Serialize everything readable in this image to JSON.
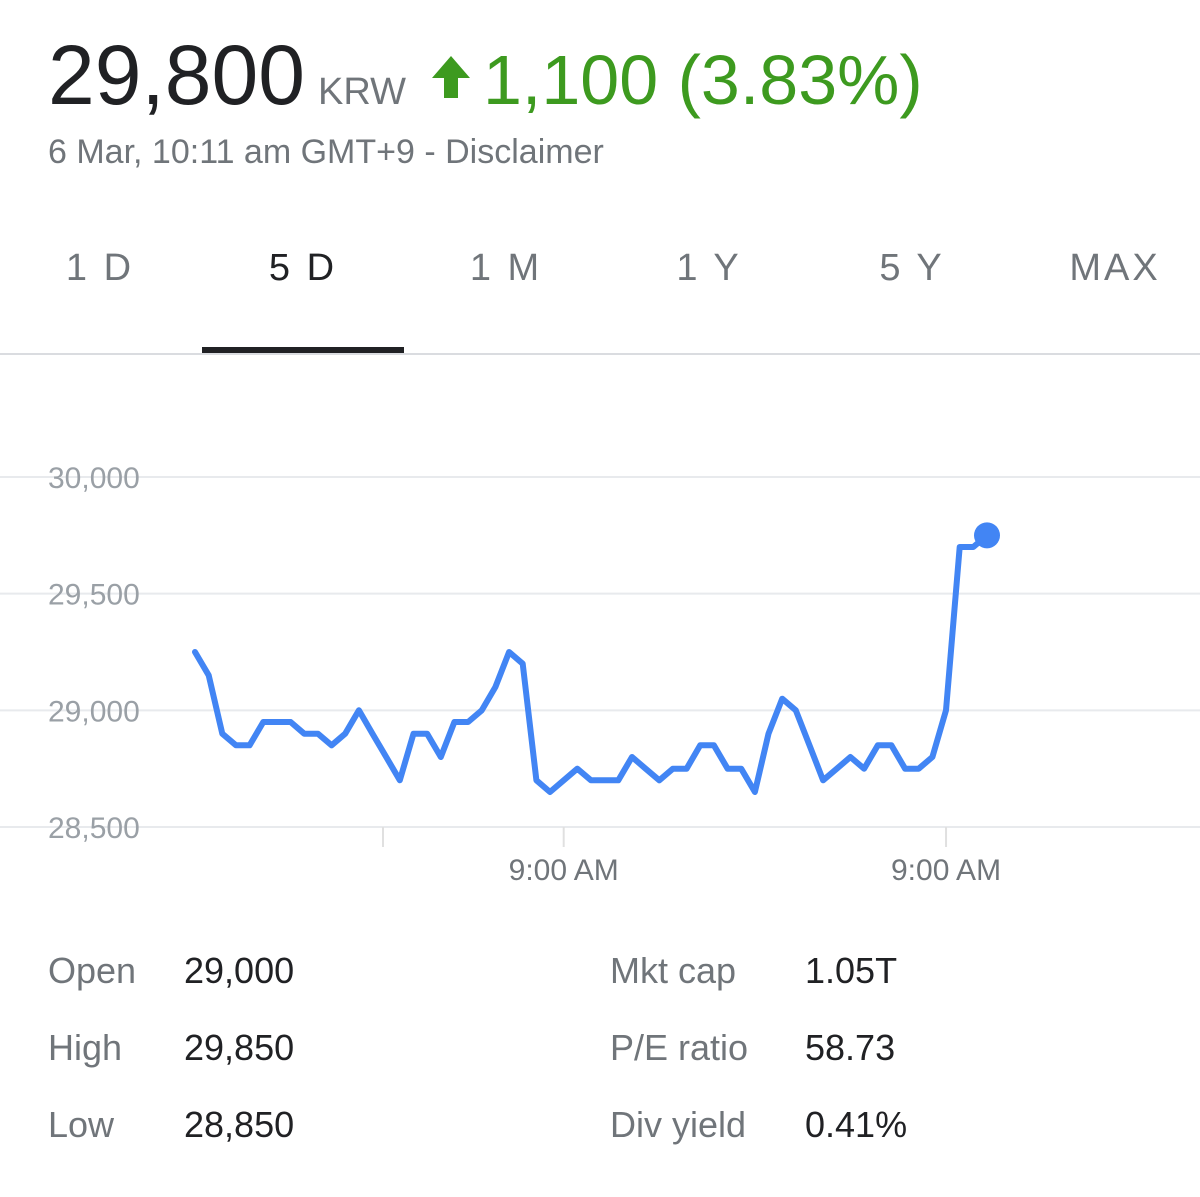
{
  "header": {
    "price": "29,800",
    "currency": "KRW",
    "change": "1,100 (3.83%)",
    "timestamp": "6 Mar, 10:11 am GMT+9 - Disclaimer"
  },
  "tabs": {
    "items": [
      "1 D",
      "5 D",
      "1 M",
      "1 Y",
      "5 Y",
      "MAX"
    ],
    "selected": 1
  },
  "chart_data": {
    "type": "line",
    "color": "#4285f4",
    "grid": true,
    "categories": [
      null,
      null,
      null,
      null,
      null,
      null,
      null,
      null,
      null,
      null,
      null,
      null,
      null,
      null,
      null,
      null,
      null,
      null,
      null,
      null,
      null,
      null,
      null,
      null,
      null,
      null,
      null,
      "9:00 AM",
      null,
      null,
      null,
      null,
      null,
      null,
      null,
      null,
      null,
      null,
      null,
      null,
      null,
      null,
      null,
      null,
      null,
      null,
      null,
      null,
      null,
      null,
      null,
      null,
      null,
      null,
      null,
      "9:00 AM",
      null,
      null,
      null
    ],
    "values": [
      29250,
      29150,
      28900,
      28850,
      28850,
      28950,
      28950,
      28950,
      28900,
      28900,
      28850,
      28900,
      29000,
      28900,
      28800,
      28700,
      28900,
      28900,
      28800,
      28950,
      28950,
      29000,
      29100,
      29250,
      29200,
      28700,
      28650,
      28700,
      28750,
      28700,
      28700,
      28700,
      28800,
      28750,
      28700,
      28750,
      28750,
      28850,
      28850,
      28750,
      28750,
      28650,
      28900,
      29050,
      29000,
      28850,
      28700,
      28750,
      28800,
      28750,
      28850,
      28850,
      28750,
      28750,
      28800,
      29000,
      29700,
      29700,
      29750
    ],
    "ylim": [
      28500,
      30000
    ],
    "yticks": [
      {
        "value": 28500,
        "label": "28,500"
      },
      {
        "value": 29000,
        "label": "29,000"
      },
      {
        "value": 29500,
        "label": "29,500"
      },
      {
        "value": 30000,
        "label": "30,000"
      }
    ]
  },
  "stats": {
    "left": [
      {
        "label": "Open",
        "value": "29,000"
      },
      {
        "label": "High",
        "value": "29,850"
      },
      {
        "label": "Low",
        "value": "28,850"
      }
    ],
    "right": [
      {
        "label": "Mkt cap",
        "value": "1.05T"
      },
      {
        "label": "P/E ratio",
        "value": "58.73"
      },
      {
        "label": "Div yield",
        "value": "0.41%"
      }
    ]
  }
}
